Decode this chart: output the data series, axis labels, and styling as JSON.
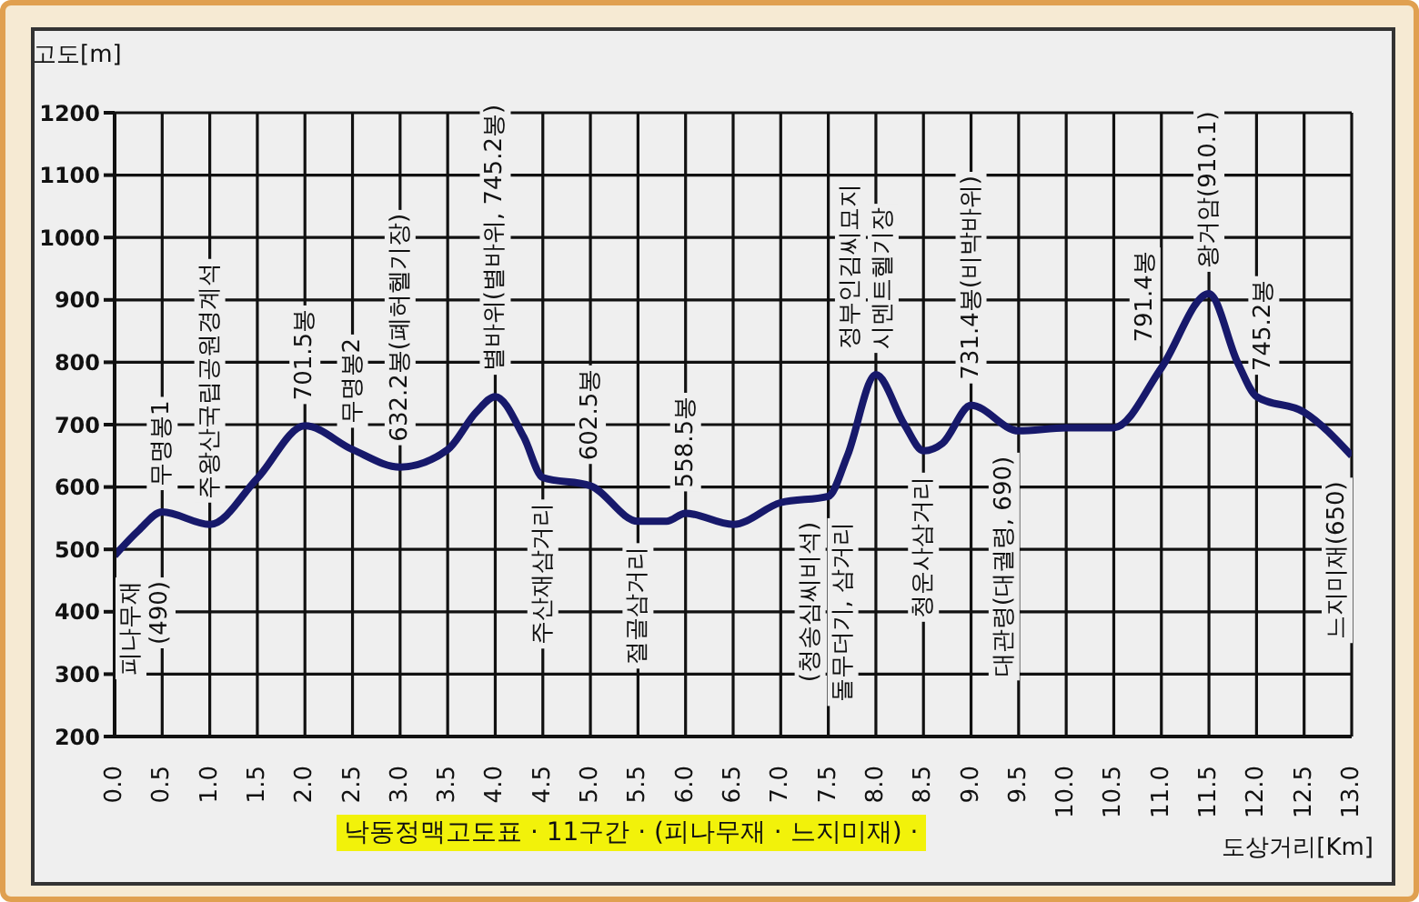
{
  "chart_data": {
    "type": "line",
    "title": "낙동정맥고도표 · 11구간 · (피나무재 · 느지미재) ·",
    "xlabel": "도상거리[Km]",
    "ylabel": "고도[m]",
    "x": [
      0,
      0.25,
      0.5,
      1.0,
      1.5,
      2.0,
      2.5,
      3.0,
      3.5,
      3.8,
      4.0,
      4.3,
      4.5,
      5.0,
      5.5,
      5.8,
      6.0,
      6.5,
      7.0,
      7.5,
      7.7,
      8.0,
      8.3,
      8.5,
      8.7,
      9.0,
      9.5,
      10.0,
      10.5,
      11.0,
      11.5,
      11.8,
      12.0,
      12.5,
      13.0
    ],
    "values": [
      490,
      530,
      560,
      540,
      614,
      698,
      660,
      632,
      660,
      720,
      745,
      680,
      615,
      602,
      545,
      545,
      558,
      540,
      575,
      585,
      650,
      780,
      700,
      658,
      670,
      731,
      690,
      695,
      695,
      791,
      910,
      800,
      745,
      720,
      650
    ],
    "color": "#17196b",
    "marker": "none",
    "grid": true,
    "xlim": [
      0,
      13
    ],
    "ylim": [
      200,
      1200
    ],
    "xticks": [
      {
        "value": 0,
        "label": "0.0"
      },
      {
        "value": 0.5,
        "label": "0.5"
      },
      {
        "value": 1,
        "label": "1.0"
      },
      {
        "value": 1.5,
        "label": "1.5"
      },
      {
        "value": 2,
        "label": "2.0"
      },
      {
        "value": 2.5,
        "label": "2.5"
      },
      {
        "value": 3,
        "label": "3.0"
      },
      {
        "value": 3.5,
        "label": "3.5"
      },
      {
        "value": 4,
        "label": "4.0"
      },
      {
        "value": 4.5,
        "label": "4.5"
      },
      {
        "value": 5,
        "label": "5.0"
      },
      {
        "value": 5.5,
        "label": "5.5"
      },
      {
        "value": 6,
        "label": "6.0"
      },
      {
        "value": 6.5,
        "label": "6.5"
      },
      {
        "value": 7,
        "label": "7.0"
      },
      {
        "value": 7.5,
        "label": "7.5"
      },
      {
        "value": 8,
        "label": "8.0"
      },
      {
        "value": 8.5,
        "label": "8.5"
      },
      {
        "value": 9,
        "label": "9.0"
      },
      {
        "value": 9.5,
        "label": "9.5"
      },
      {
        "value": 10,
        "label": "10.0"
      },
      {
        "value": 10.5,
        "label": "10.5"
      },
      {
        "value": 11,
        "label": "11.0"
      },
      {
        "value": 11.5,
        "label": "11.5"
      },
      {
        "value": 12,
        "label": "12.0"
      },
      {
        "value": 12.5,
        "label": "12.5"
      },
      {
        "value": 13,
        "label": "13.0"
      }
    ],
    "yticks": [
      200,
      300,
      400,
      500,
      600,
      700,
      800,
      900,
      1000,
      1100,
      1200
    ],
    "annotations": [
      {
        "text": "피나무재",
        "x": 0,
        "y": 490
      },
      {
        "text": "(490)",
        "x": 0,
        "y": 490
      },
      {
        "text": "무명봉1",
        "x": 0.5,
        "y": 560
      },
      {
        "text": "주왕산국립공원경계석",
        "x": 1.0,
        "y": 540
      },
      {
        "text": "701.5봉",
        "x": 2.0,
        "y": 698
      },
      {
        "text": "무명봉2",
        "x": 2.5,
        "y": 660
      },
      {
        "text": "632.2봉(폐허헬기장)",
        "x": 3.0,
        "y": 632
      },
      {
        "text": "별바위(별바위, 745.2봉)",
        "x": 4.0,
        "y": 745
      },
      {
        "text": "602.5봉",
        "x": 5.0,
        "y": 602
      },
      {
        "text": "558.5봉",
        "x": 6.0,
        "y": 558
      },
      {
        "text": "정부인김씨묘지",
        "x": 8.0,
        "y": 780
      },
      {
        "text": "시멘트헬기장",
        "x": 8.0,
        "y": 780
      },
      {
        "text": "731.4봉(비박바위)",
        "x": 9.0,
        "y": 731
      },
      {
        "text": "791.4봉",
        "x": 11.0,
        "y": 791
      },
      {
        "text": "왕거암(910.1)",
        "x": 11.5,
        "y": 910
      },
      {
        "text": "745.2봉",
        "x": 12.0,
        "y": 745
      },
      {
        "text": "주산재삼거리",
        "x": 4.5,
        "y": 615
      },
      {
        "text": "절골삼거리",
        "x": 5.5,
        "y": 545
      },
      {
        "text": "(청송심씨비석)",
        "x": 7.5,
        "y": 585
      },
      {
        "text": "돌무더기, 삼거리",
        "x": 7.5,
        "y": 585
      },
      {
        "text": "청운사삼거리",
        "x": 8.5,
        "y": 658
      },
      {
        "text": "대관령(대궐령, 690)",
        "x": 9.5,
        "y": 690
      },
      {
        "text": "느지미재(650)",
        "x": 13.0,
        "y": 650
      }
    ]
  }
}
